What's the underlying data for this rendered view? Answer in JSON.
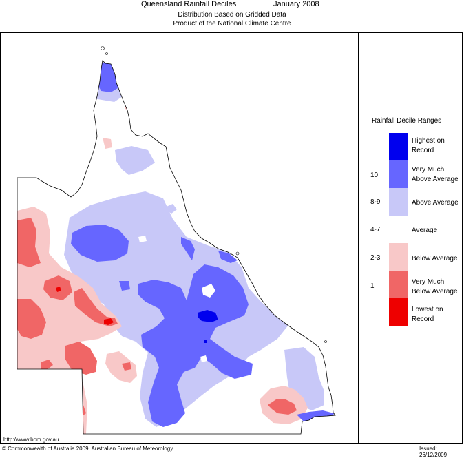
{
  "header": {
    "title": "Queensland Rainfall Deciles",
    "period": "January 2008",
    "subtitle1": "Distribution Based on Gridded Data",
    "subtitle2": "Product of the National Climate Centre"
  },
  "legend": {
    "title": "Rainfall Decile Ranges",
    "items": [
      {
        "label": "Highest on Record",
        "l1": "Highest on",
        "l2": "Record",
        "range": "",
        "color": "#0000ee"
      },
      {
        "label": "Very Much Above Average",
        "l1": "Very Much",
        "l2": "Above Average",
        "range": "10",
        "color": "#6666ff"
      },
      {
        "label": "Above Average",
        "l1": "Above Average",
        "l2": "",
        "range": "8-9",
        "color": "#c8c8f8"
      },
      {
        "label": "Average",
        "l1": "Average",
        "l2": "",
        "range": "4-7",
        "color": "#ffffff"
      },
      {
        "label": "Below Average",
        "l1": "Below Average",
        "l2": "",
        "range": "2-3",
        "color": "#f8c8c8"
      },
      {
        "label": "Very Much Below Average",
        "l1": "Very Much",
        "l2": "Below Average",
        "range": "1",
        "color": "#f06666"
      },
      {
        "label": "Lowest on Record",
        "l1": "Lowest on",
        "l2": "Record",
        "range": "",
        "color": "#ee0000"
      }
    ]
  },
  "footer": {
    "url": "http://www.bom.gov.au",
    "copyright": "© Commonwealth of Australia 2009, Australian Bureau of Meteorology",
    "issued": "Issued: 26/12/2009"
  }
}
